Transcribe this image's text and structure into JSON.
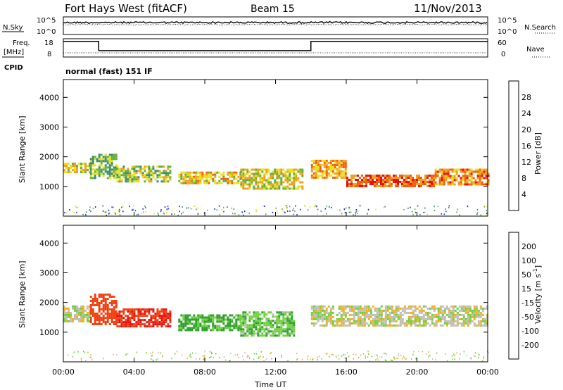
{
  "header": {
    "station": "Fort Hays West (fitACF)",
    "beam": "Beam 15",
    "date": "11/Nov/2013"
  },
  "noise_panel": {
    "left_label": "N.Sky",
    "left_ticks": [
      "10^5",
      "10^0"
    ],
    "right_ticks": [
      "10^5",
      "10^0"
    ],
    "right_label": "N.Search",
    "right_legend_style": "dotted"
  },
  "freq_panel": {
    "left_label_line1": "Freq.",
    "left_label_line2": "[MHz]",
    "left_ticks": [
      "18",
      "8"
    ],
    "right_ticks": [
      "60",
      "0"
    ],
    "right_label": "Nave",
    "right_legend_style": "dotted",
    "freq_steps_ut": [
      {
        "from": 0.0,
        "to": 2.0,
        "value": 16.5
      },
      {
        "from": 2.0,
        "to": 14.0,
        "value": 11.5
      },
      {
        "from": 14.0,
        "to": 24.0,
        "value": 16.5
      }
    ]
  },
  "cpid": {
    "label": "CPID",
    "text": "normal (fast) 151 IF"
  },
  "chart_data": [
    {
      "type": "heatmap",
      "title": "",
      "xlabel": "Time UT",
      "ylabel": "Slant Range [km]",
      "xlim": [
        0,
        24
      ],
      "ylim": [
        0,
        4600
      ],
      "xticks": [
        "00:00",
        "04:00",
        "08:00",
        "12:00",
        "16:00",
        "20:00",
        "00:00"
      ],
      "yticks": [
        1000,
        2000,
        3000,
        4000
      ],
      "colorbar": {
        "label": "Power [dB]",
        "ticks": [
          4,
          8,
          12,
          16,
          20,
          24,
          28
        ],
        "colors": [
          "#1020e0",
          "#2850b0",
          "#3c8c70",
          "#60b040",
          "#e8e020",
          "#f0a020",
          "#f06010",
          "#e81010"
        ]
      },
      "echo_bands": [
        {
          "t": [
            0,
            1.5
          ],
          "range_km": [
            1500,
            1800
          ],
          "power_db": 18
        },
        {
          "t": [
            1.5,
            3.0
          ],
          "range_km": [
            1300,
            2100
          ],
          "power_db": 14
        },
        {
          "t": [
            3.0,
            6.0
          ],
          "range_km": [
            1200,
            1700
          ],
          "power_db": 16
        },
        {
          "t": [
            6.5,
            10.0
          ],
          "range_km": [
            1100,
            1500
          ],
          "power_db": 20
        },
        {
          "t": [
            10.0,
            13.5
          ],
          "range_km": [
            900,
            1600
          ],
          "power_db": 18
        },
        {
          "t": [
            14.0,
            16.0
          ],
          "range_km": [
            1300,
            1900
          ],
          "power_db": 22
        },
        {
          "t": [
            16.0,
            21.0
          ],
          "range_km": [
            1000,
            1400
          ],
          "power_db": 26
        },
        {
          "t": [
            21.0,
            24.0
          ],
          "range_km": [
            1100,
            1600
          ],
          "power_db": 24
        }
      ]
    },
    {
      "type": "heatmap",
      "title": "",
      "xlabel": "Time UT",
      "ylabel": "Slant Range [km]",
      "xlim": [
        0,
        24
      ],
      "ylim": [
        0,
        4600
      ],
      "xticks": [
        "00:00",
        "04:00",
        "08:00",
        "12:00",
        "16:00",
        "20:00",
        "00:00"
      ],
      "yticks": [
        1000,
        2000,
        3000,
        4000
      ],
      "colorbar": {
        "label": "Velocity [m s^-1]",
        "ticks": [
          200,
          100,
          50,
          15,
          -15,
          -50,
          -100,
          -200
        ],
        "colors": [
          "#1030d0",
          "#2060e0",
          "#30a030",
          "#70d040",
          "#c0c0b8",
          "#f0b020",
          "#f08010",
          "#f04010",
          "#e81010"
        ]
      },
      "echo_bands": [
        {
          "t": [
            0,
            1.5
          ],
          "range_km": [
            1400,
            1900
          ],
          "velocity_ms": 0
        },
        {
          "t": [
            1.5,
            3.0
          ],
          "range_km": [
            1300,
            2300
          ],
          "velocity_ms": -150
        },
        {
          "t": [
            3.0,
            6.0
          ],
          "range_km": [
            1200,
            1800
          ],
          "velocity_ms": -200
        },
        {
          "t": [
            6.5,
            10.0
          ],
          "range_km": [
            1100,
            1600
          ],
          "velocity_ms": 60
        },
        {
          "t": [
            10.0,
            13.0
          ],
          "range_km": [
            900,
            1700
          ],
          "velocity_ms": 40
        },
        {
          "t": [
            14.0,
            24.0
          ],
          "range_km": [
            1200,
            1900
          ],
          "velocity_ms": 0
        }
      ]
    }
  ]
}
